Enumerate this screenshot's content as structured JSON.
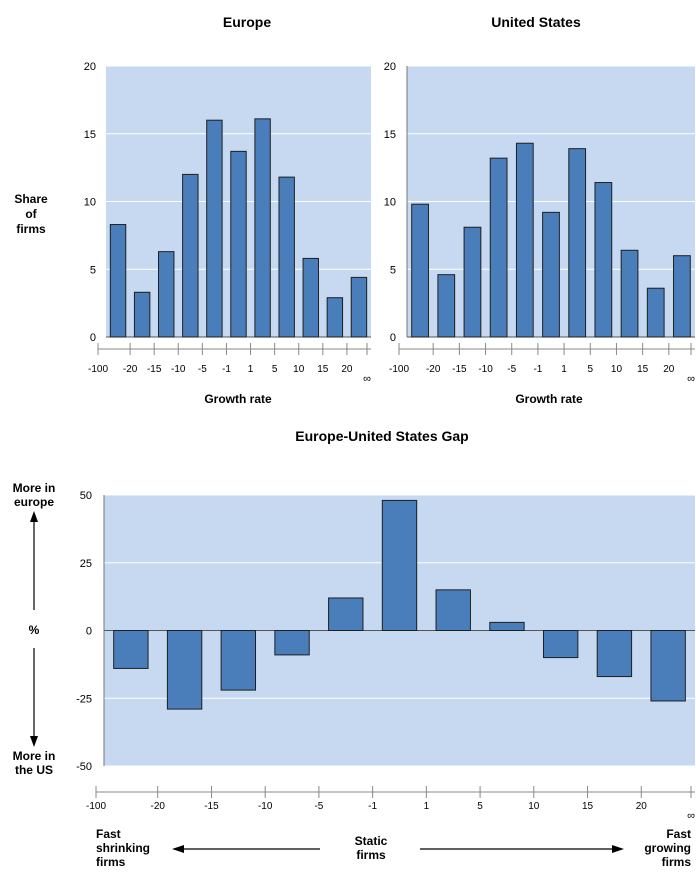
{
  "chart_data": [
    {
      "type": "bar",
      "title": "Europe",
      "xlabel": "Growth rate",
      "ylabel": "Share of firms",
      "ylabel_lines": [
        "Share",
        "of",
        "firms"
      ],
      "ylim": [
        0,
        20
      ],
      "yticks": [
        "0",
        "5",
        "10",
        "15",
        "20"
      ],
      "x_tick_labels": [
        "-100",
        "-20",
        "-15",
        "-10",
        "-5",
        "-1",
        "1",
        "5",
        "10",
        "15",
        "20",
        "∞"
      ],
      "values": [
        8.3,
        3.3,
        6.3,
        12.0,
        16.0,
        13.7,
        16.1,
        11.8,
        5.8,
        2.9,
        4.4
      ],
      "bar_color": "#4a7ebb",
      "plot_bg": "#c6d9f1",
      "grid": true
    },
    {
      "type": "bar",
      "title": "United States",
      "xlabel": "Growth rate",
      "ylim": [
        0,
        20
      ],
      "yticks": [
        "0",
        "5",
        "10",
        "15",
        "20"
      ],
      "x_tick_labels": [
        "-100",
        "-20",
        "-15",
        "-10",
        "-5",
        "-1",
        "1",
        "5",
        "10",
        "15",
        "20",
        "∞"
      ],
      "values": [
        9.8,
        4.6,
        8.1,
        13.2,
        14.3,
        9.2,
        13.9,
        11.4,
        6.4,
        3.6,
        6.0
      ],
      "bar_color": "#4a7ebb",
      "plot_bg": "#c6d9f1",
      "grid": true
    },
    {
      "type": "bar",
      "title": "Europe-United States Gap",
      "ylabel": "%",
      "ylim": [
        -50,
        50
      ],
      "yticks": [
        "-50",
        "-25",
        "0",
        "25",
        "50"
      ],
      "x_tick_labels": [
        "-100",
        "-20",
        "-15",
        "-10",
        "-5",
        "-1",
        "1",
        "5",
        "10",
        "15",
        "20",
        "∞"
      ],
      "values": [
        -14,
        -29,
        -22,
        -9,
        12,
        48,
        15,
        3,
        -10,
        -17,
        -26
      ],
      "bar_color": "#4a7ebb",
      "plot_bg": "#c6d9f1",
      "grid": true,
      "annotations": {
        "top": [
          "More in",
          "europe"
        ],
        "bottom": [
          "More in",
          "the US"
        ],
        "left": [
          "Fast",
          "shrinking",
          "firms"
        ],
        "center": [
          "Static",
          "firms"
        ],
        "right": [
          "Fast",
          "growing",
          "firms"
        ]
      }
    }
  ]
}
